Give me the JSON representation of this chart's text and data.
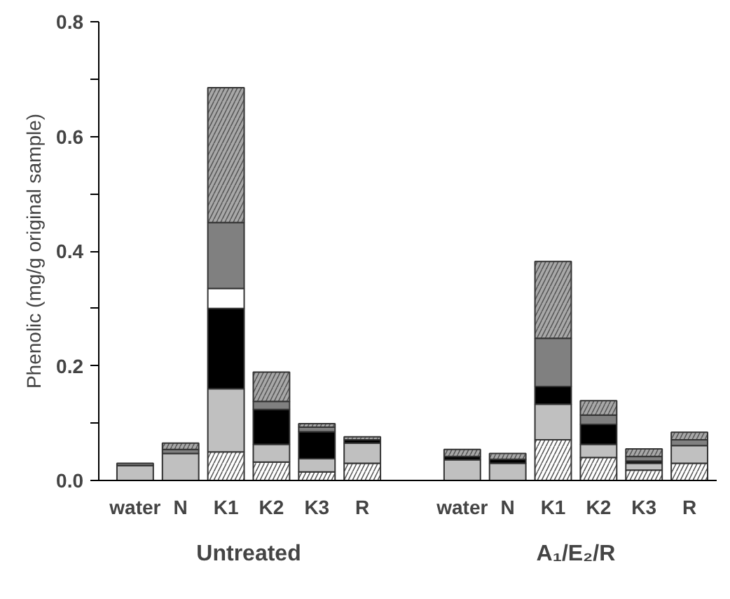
{
  "chart_data": {
    "type": "bar",
    "stacked": true,
    "ylabel": "Phenolic (mg/g original sample)",
    "categories": [
      "water",
      "N",
      "K1",
      "K2",
      "K3",
      "R",
      "water",
      "N",
      "K1",
      "K2",
      "K3",
      "R"
    ],
    "series": [
      {
        "color": "#ffffff",
        "values": [
          0,
          0,
          0.05,
          0.032,
          0.015,
          0.03,
          0,
          0,
          0.071,
          0.04,
          0.018,
          0.03
        ]
      },
      {
        "color": "#c0c0c0",
        "values": [
          0.026,
          0.047,
          0.11,
          0.031,
          0.023,
          0.035,
          0.036,
          0.03,
          0.062,
          0.023,
          0.012,
          0.031
        ]
      },
      {
        "color": "#000000",
        "values": [
          0,
          0,
          0.14,
          0.061,
          0.047,
          0.006,
          0.006,
          0.007,
          0.031,
          0.035,
          0.004,
          0
        ]
      },
      {
        "color": "#ffffff",
        "values": [
          0,
          0,
          0.035,
          0,
          0,
          0,
          0,
          0,
          0,
          0,
          0,
          0
        ]
      },
      {
        "color": "#808080",
        "values": [
          0.004,
          0.007,
          0.115,
          0.014,
          0.008,
          null,
          0,
          0,
          0.084,
          0.016,
          0.008,
          0.01
        ]
      },
      {
        "color": "#a8a8a8",
        "values": [
          null,
          0.011,
          0.235,
          0.051,
          0.006,
          0.005,
          0.012,
          0.01,
          0.134,
          0.025,
          0.013,
          0.013
        ]
      }
    ],
    "ylim": [
      0,
      0.8
    ],
    "yticks": [
      {
        "value": 0,
        "label": "0.0"
      },
      {
        "value": 0.1,
        "label": null
      },
      {
        "value": 0.2,
        "label": "0.2"
      },
      {
        "value": 0.3,
        "label": null
      },
      {
        "value": 0.4,
        "label": "0.4"
      },
      {
        "value": 0.5,
        "label": null
      },
      {
        "value": 0.6,
        "label": "0.6"
      },
      {
        "value": 0.7,
        "label": null
      },
      {
        "value": 0.8,
        "label": "0.8"
      }
    ],
    "annotations": [
      "Untreated",
      "A₁/E₂/R"
    ]
  }
}
